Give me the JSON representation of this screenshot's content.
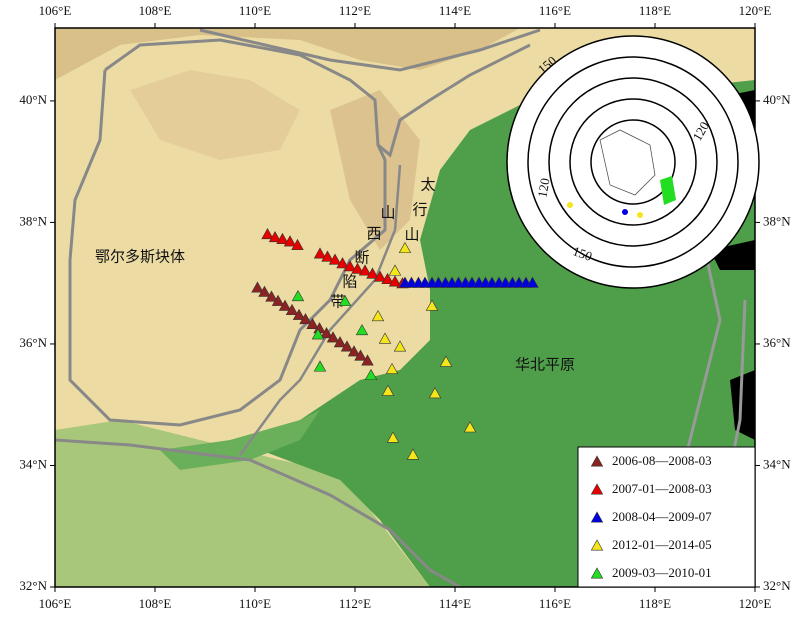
{
  "chart_data": {
    "type": "map",
    "xlim": [
      106,
      120
    ],
    "ylim": [
      32,
      41.2
    ],
    "xticks": [
      {
        "value": 106,
        "label": "106°E"
      },
      {
        "value": 108,
        "label": "108°E"
      },
      {
        "value": 110,
        "label": "110°E"
      },
      {
        "value": 112,
        "label": "112°E"
      },
      {
        "value": 114,
        "label": "114°E"
      },
      {
        "value": 116,
        "label": "116°E"
      },
      {
        "value": 118,
        "label": "118°E"
      },
      {
        "value": 120,
        "label": "120°E"
      }
    ],
    "yticks": [
      {
        "value": 32,
        "label": "32°N"
      },
      {
        "value": 34,
        "label": "34°N"
      },
      {
        "value": 36,
        "label": "36°N"
      },
      {
        "value": 38,
        "label": "38°N"
      },
      {
        "value": 40,
        "label": "40°N"
      }
    ],
    "series": [
      {
        "name": "2006-08—2008-03",
        "color": "#8b2323",
        "x": [
          110.05,
          110.19,
          110.33,
          110.46,
          110.6,
          110.74,
          110.88,
          111.01,
          111.15,
          111.29,
          111.43,
          111.56,
          111.7,
          111.84,
          111.98,
          112.11,
          112.25
        ],
        "y": [
          36.92,
          36.85,
          36.77,
          36.7,
          36.62,
          36.55,
          36.47,
          36.4,
          36.32,
          36.25,
          36.17,
          36.1,
          36.02,
          35.95,
          35.87,
          35.8,
          35.72
        ]
      },
      {
        "name": "2007-01—2008-03",
        "color": "#e60000",
        "x": [
          110.25,
          110.4,
          110.55,
          110.7,
          110.85,
          111.3,
          111.45,
          111.6,
          111.75,
          111.9,
          112.05,
          112.2,
          112.35,
          112.5,
          112.65,
          112.8,
          112.95
        ],
        "y": [
          37.8,
          37.75,
          37.72,
          37.68,
          37.62,
          37.48,
          37.43,
          37.38,
          37.32,
          37.27,
          37.23,
          37.2,
          37.15,
          37.1,
          37.06,
          37.02,
          36.99
        ]
      },
      {
        "name": "2008-04—2009-07",
        "color": "#0000e0",
        "x": [
          113.0,
          113.13,
          113.27,
          113.4,
          113.54,
          113.67,
          113.81,
          113.94,
          114.07,
          114.21,
          114.34,
          114.48,
          114.61,
          114.74,
          114.88,
          115.01,
          115.15,
          115.28,
          115.42,
          115.55
        ],
        "y": [
          37.0,
          37.0,
          37.0,
          37.0,
          37.0,
          37.0,
          37.0,
          37.0,
          37.0,
          37.0,
          37.0,
          37.0,
          37.0,
          37.0,
          37.0,
          37.0,
          37.0,
          37.0,
          37.0,
          37.0
        ]
      },
      {
        "name": "2012-01—2014-05",
        "color": "#f5e51b",
        "x": [
          112.8,
          113.0,
          112.46,
          112.6,
          112.9,
          112.74,
          113.54,
          113.82,
          112.66,
          113.6,
          112.76,
          113.16,
          114.3
        ],
        "y": [
          37.2,
          37.57,
          36.45,
          36.08,
          35.95,
          35.58,
          36.62,
          35.7,
          35.22,
          35.18,
          34.45,
          34.17,
          34.62
        ]
      },
      {
        "name": "2009-03—2010-01",
        "color": "#22dd22",
        "x": [
          110.86,
          111.8,
          112.14,
          111.26,
          111.3,
          112.32
        ],
        "y": [
          36.78,
          36.7,
          36.22,
          36.15,
          35.62,
          35.48
        ]
      }
    ],
    "annotations": [
      "鄂尔多斯块体",
      "山",
      "西",
      "断",
      "陷",
      "带",
      "太",
      "行",
      "山",
      "华北平原"
    ],
    "inset": {
      "ring_labels": [
        "150",
        "120",
        "120",
        "150"
      ]
    }
  }
}
